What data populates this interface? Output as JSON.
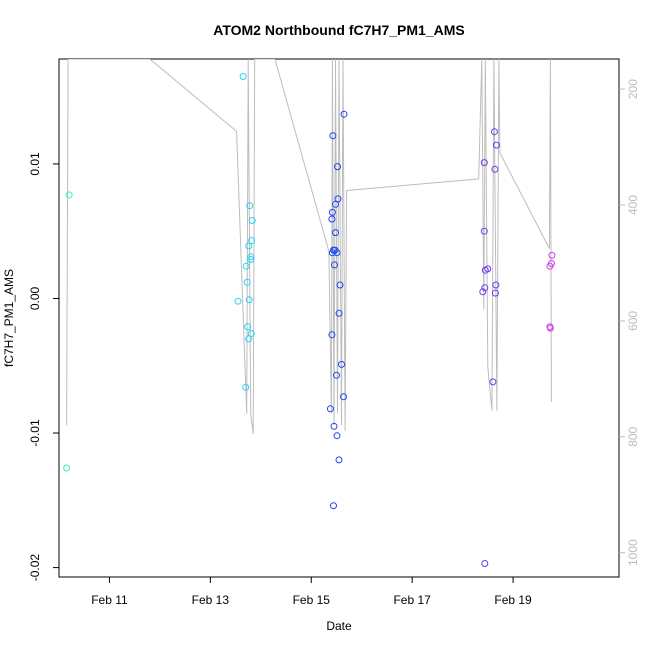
{
  "chart_data": {
    "type": "scatter",
    "title": "ATOM2 Northbound fC7H7_PM1_AMS",
    "xlabel": "Date",
    "ylabel": "fC7H7_PM1_AMS",
    "xlim": [
      10.0,
      21.1
    ],
    "ylim": [
      -0.0207,
      0.0178
    ],
    "x_ticks": [
      {
        "value": 11,
        "label": "Feb 11"
      },
      {
        "value": 13,
        "label": "Feb 13"
      },
      {
        "value": 15,
        "label": "Feb 15"
      },
      {
        "value": 17,
        "label": "Feb 17"
      },
      {
        "value": 19,
        "label": "Feb 19"
      }
    ],
    "y_ticks": [
      {
        "value": 0.01,
        "label": "0.01"
      },
      {
        "value": 0.0,
        "label": "0.00"
      },
      {
        "value": -0.01,
        "label": "-0.01"
      },
      {
        "value": -0.02,
        "label": "-0.02"
      }
    ],
    "secondary_axis": {
      "ylim": [
        1042,
        148
      ],
      "ticks": [
        {
          "value": 200,
          "label": "200"
        },
        {
          "value": 400,
          "label": "400"
        },
        {
          "value": 600,
          "label": "600"
        },
        {
          "value": 800,
          "label": "800"
        },
        {
          "value": 1000,
          "label": "1000"
        }
      ],
      "color": "#bdbdbd"
    },
    "colors": {
      "line": "#bdbdbd",
      "axis": "#000000"
    },
    "points": [
      {
        "x": 10.2,
        "y": 0.0077,
        "color": "#3cf0c0"
      },
      {
        "x": 10.15,
        "y": -0.0126,
        "color": "#3cf0c0"
      },
      {
        "x": 13.65,
        "y": 0.0165,
        "color": "#28d2f0"
      },
      {
        "x": 13.78,
        "y": 0.0069,
        "color": "#28d2f0"
      },
      {
        "x": 13.83,
        "y": 0.0058,
        "color": "#28d2f0"
      },
      {
        "x": 13.82,
        "y": 0.0043,
        "color": "#28d2f0"
      },
      {
        "x": 13.76,
        "y": 0.0039,
        "color": "#28d2f0"
      },
      {
        "x": 13.8,
        "y": 0.0031,
        "color": "#28d2f0"
      },
      {
        "x": 13.8,
        "y": 0.0029,
        "color": "#28d2f0"
      },
      {
        "x": 13.71,
        "y": 0.0024,
        "color": "#28d2f0"
      },
      {
        "x": 13.73,
        "y": 0.0012,
        "color": "#28d2f0"
      },
      {
        "x": 13.55,
        "y": -0.0002,
        "color": "#28d2f0"
      },
      {
        "x": 13.77,
        "y": -0.0001,
        "color": "#28d2f0"
      },
      {
        "x": 13.74,
        "y": -0.0021,
        "color": "#28d2f0"
      },
      {
        "x": 13.81,
        "y": -0.0026,
        "color": "#28d2f0"
      },
      {
        "x": 13.76,
        "y": -0.003,
        "color": "#28d2f0"
      },
      {
        "x": 13.7,
        "y": -0.0066,
        "color": "#28d2f0"
      },
      {
        "x": 15.65,
        "y": 0.0137,
        "color": "#1e46f0"
      },
      {
        "x": 15.43,
        "y": 0.0121,
        "color": "#1e46f0"
      },
      {
        "x": 15.52,
        "y": 0.0098,
        "color": "#1e46f0"
      },
      {
        "x": 15.53,
        "y": 0.0074,
        "color": "#1e46f0"
      },
      {
        "x": 15.48,
        "y": 0.007,
        "color": "#1e46f0"
      },
      {
        "x": 15.42,
        "y": 0.0064,
        "color": "#1e46f0"
      },
      {
        "x": 15.41,
        "y": 0.0059,
        "color": "#1e46f0"
      },
      {
        "x": 15.48,
        "y": 0.0049,
        "color": "#1e46f0"
      },
      {
        "x": 15.47,
        "y": 0.0036,
        "color": "#1e46f0"
      },
      {
        "x": 15.44,
        "y": 0.0036,
        "color": "#1e46f0"
      },
      {
        "x": 15.42,
        "y": 0.0034,
        "color": "#1e46f0"
      },
      {
        "x": 15.51,
        "y": 0.0034,
        "color": "#1e46f0"
      },
      {
        "x": 15.46,
        "y": 0.0025,
        "color": "#1e46f0"
      },
      {
        "x": 15.57,
        "y": 0.001,
        "color": "#1e46f0"
      },
      {
        "x": 15.55,
        "y": -0.0011,
        "color": "#1e46f0"
      },
      {
        "x": 15.41,
        "y": -0.0027,
        "color": "#1e46f0"
      },
      {
        "x": 15.6,
        "y": -0.0049,
        "color": "#1e46f0"
      },
      {
        "x": 15.5,
        "y": -0.0057,
        "color": "#1e46f0"
      },
      {
        "x": 15.64,
        "y": -0.0073,
        "color": "#1e46f0"
      },
      {
        "x": 15.38,
        "y": -0.0082,
        "color": "#1e46f0"
      },
      {
        "x": 15.45,
        "y": -0.0095,
        "color": "#1e46f0"
      },
      {
        "x": 15.51,
        "y": -0.0102,
        "color": "#1e46f0"
      },
      {
        "x": 15.55,
        "y": -0.012,
        "color": "#1e46f0"
      },
      {
        "x": 15.44,
        "y": -0.0154,
        "color": "#1e46f0"
      },
      {
        "x": 18.63,
        "y": 0.0124,
        "color": "#6e3cf0"
      },
      {
        "x": 18.67,
        "y": 0.0114,
        "color": "#6e3cf0"
      },
      {
        "x": 18.43,
        "y": 0.0101,
        "color": "#6e3cf0"
      },
      {
        "x": 18.64,
        "y": 0.0096,
        "color": "#6e3cf0"
      },
      {
        "x": 18.43,
        "y": 0.005,
        "color": "#6e3cf0"
      },
      {
        "x": 18.5,
        "y": 0.0022,
        "color": "#6e3cf0"
      },
      {
        "x": 18.45,
        "y": 0.0021,
        "color": "#6e3cf0"
      },
      {
        "x": 18.66,
        "y": 0.001,
        "color": "#6e3cf0"
      },
      {
        "x": 18.44,
        "y": 0.0008,
        "color": "#6e3cf0"
      },
      {
        "x": 18.4,
        "y": 0.0005,
        "color": "#6e3cf0"
      },
      {
        "x": 18.65,
        "y": 0.0004,
        "color": "#6e3cf0"
      },
      {
        "x": 18.6,
        "y": -0.0062,
        "color": "#6e3cf0"
      },
      {
        "x": 18.44,
        "y": -0.0197,
        "color": "#6e3cf0"
      },
      {
        "x": 19.77,
        "y": 0.0032,
        "color": "#c83cf0"
      },
      {
        "x": 19.76,
        "y": 0.0026,
        "color": "#c83cf0"
      },
      {
        "x": 19.73,
        "y": 0.0024,
        "color": "#c83cf0"
      },
      {
        "x": 19.73,
        "y": -0.0021,
        "color": "#c83cf0"
      },
      {
        "x": 19.74,
        "y": -0.0022,
        "color": "#c83cf0"
      }
    ],
    "secondary_line": [
      [
        10.18,
        148
      ],
      [
        10.18,
        148
      ],
      [
        10.15,
        780
      ],
      [
        10.18,
        148
      ],
      [
        11.8,
        148
      ],
      [
        13.52,
        273
      ],
      [
        13.72,
        760
      ],
      [
        13.75,
        148
      ],
      [
        13.8,
        760
      ],
      [
        13.85,
        795
      ],
      [
        13.88,
        148
      ],
      [
        14.28,
        148
      ],
      [
        15.35,
        480
      ],
      [
        15.4,
        760
      ],
      [
        15.42,
        148
      ],
      [
        15.45,
        780
      ],
      [
        15.48,
        148
      ],
      [
        15.52,
        760
      ],
      [
        15.55,
        148
      ],
      [
        15.6,
        780
      ],
      [
        15.63,
        148
      ],
      [
        15.67,
        790
      ],
      [
        15.7,
        375
      ],
      [
        18.32,
        355
      ],
      [
        18.38,
        148
      ],
      [
        18.42,
        580
      ],
      [
        18.45,
        148
      ],
      [
        18.5,
        680
      ],
      [
        18.58,
        755
      ],
      [
        18.62,
        148
      ],
      [
        18.68,
        755
      ],
      [
        18.72,
        148
      ],
      [
        18.74,
        310
      ],
      [
        19.72,
        475
      ],
      [
        19.74,
        148
      ],
      [
        19.76,
        740
      ]
    ]
  }
}
